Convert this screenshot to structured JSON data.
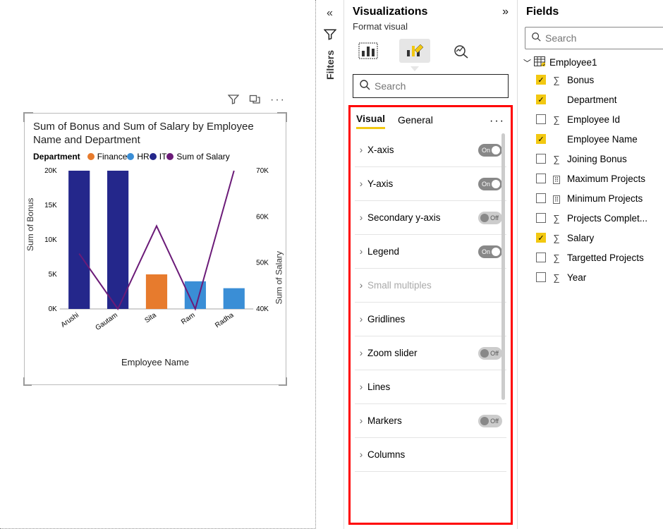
{
  "canvas": {
    "chart": {
      "type": "bar+line",
      "title": "Sum of Bonus and Sum of Salary by Employee Name and Department",
      "legend_label": "Department",
      "legend": [
        {
          "name": "Finance",
          "color": "#e77b2d"
        },
        {
          "name": "HR",
          "color": "#3a8ed6"
        },
        {
          "name": "IT",
          "color": "#24278b"
        },
        {
          "name": "Sum of Salary",
          "color": "#6b1b78"
        }
      ],
      "x_title": "Employee Name",
      "y_left_title": "Sum of Bonus",
      "y_right_title": "Sum of Salary",
      "y_left": {
        "min": 0,
        "max": 20000,
        "ticks": [
          "0K",
          "5K",
          "10K",
          "15K",
          "20K"
        ],
        "fontsize": 10
      },
      "y_right": {
        "min": 40000,
        "max": 70000,
        "ticks": [
          "40K",
          "50K",
          "60K",
          "70K"
        ],
        "fontsize": 10
      },
      "categories": [
        "Arushi",
        "Gautam",
        "Sita",
        "Ram",
        "Radha"
      ],
      "bars": [
        {
          "cat": "Arushi",
          "value": 20000,
          "dept": "IT",
          "color": "#24278b"
        },
        {
          "cat": "Gautam",
          "value": 20000,
          "dept": "IT",
          "color": "#24278b"
        },
        {
          "cat": "Sita",
          "value": 5000,
          "dept": "Finance",
          "color": "#e77b2d"
        },
        {
          "cat": "Ram",
          "value": 4000,
          "dept": "HR",
          "color": "#3a8ed6"
        },
        {
          "cat": "Radha",
          "value": 3000,
          "dept": "HR",
          "color": "#3a8ed6"
        }
      ],
      "line": {
        "color": "#6b1b78",
        "width": 2,
        "values": [
          52000,
          40000,
          58000,
          40000,
          70000
        ]
      },
      "bar_width": 0.55,
      "background_color": "#ffffff",
      "grid": false
    }
  },
  "filters": {
    "label": "Filters"
  },
  "viz": {
    "title": "Visualizations",
    "subtitle": "Format visual",
    "search_placeholder": "Search",
    "tabs": {
      "visual": "Visual",
      "general": "General"
    },
    "cards": [
      {
        "name": "X-axis",
        "toggle": "on"
      },
      {
        "name": "Y-axis",
        "toggle": "on"
      },
      {
        "name": "Secondary y-axis",
        "toggle": "off"
      },
      {
        "name": "Legend",
        "toggle": "on"
      },
      {
        "name": "Small multiples",
        "toggle": null,
        "disabled": true
      },
      {
        "name": "Gridlines",
        "toggle": null
      },
      {
        "name": "Zoom slider",
        "toggle": "off"
      },
      {
        "name": "Lines",
        "toggle": null
      },
      {
        "name": "Markers",
        "toggle": "off"
      },
      {
        "name": "Columns",
        "toggle": null
      }
    ]
  },
  "fields": {
    "title": "Fields",
    "search_placeholder": "Search",
    "table": "Employee1",
    "items": [
      {
        "name": "Bonus",
        "checked": true,
        "icon": "sigma"
      },
      {
        "name": "Department",
        "checked": true,
        "icon": "none"
      },
      {
        "name": "Employee Id",
        "checked": false,
        "icon": "sigma"
      },
      {
        "name": "Employee Name",
        "checked": true,
        "icon": "none"
      },
      {
        "name": "Joining Bonus",
        "checked": false,
        "icon": "sigma"
      },
      {
        "name": "Maximum Projects",
        "checked": false,
        "icon": "calc"
      },
      {
        "name": "Minimum Projects",
        "checked": false,
        "icon": "calc"
      },
      {
        "name": "Projects Complet...",
        "checked": false,
        "icon": "sigma"
      },
      {
        "name": "Salary",
        "checked": true,
        "icon": "sigma"
      },
      {
        "name": "Targetted Projects",
        "checked": false,
        "icon": "sigma"
      },
      {
        "name": "Year",
        "checked": false,
        "icon": "sigma"
      }
    ]
  }
}
